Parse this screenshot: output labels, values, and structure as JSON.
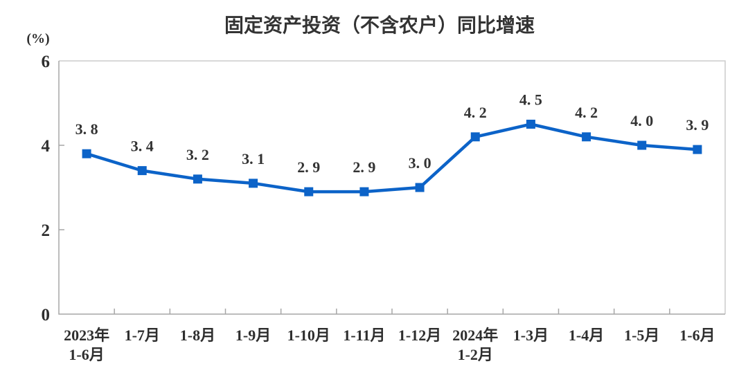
{
  "chart_data": {
    "type": "line",
    "title": "固定资产投资（不含农户）同比增速",
    "ylabel": "(%)",
    "xlabel": "",
    "grid": "off",
    "legend": "none",
    "categories": [
      {
        "line1": "2023年",
        "line2": "1-6月"
      },
      {
        "line1": "1-7月",
        "line2": ""
      },
      {
        "line1": "1-8月",
        "line2": ""
      },
      {
        "line1": "1-9月",
        "line2": ""
      },
      {
        "line1": "1-10月",
        "line2": ""
      },
      {
        "line1": "1-11月",
        "line2": ""
      },
      {
        "line1": "1-12月",
        "line2": ""
      },
      {
        "line1": "2024年",
        "line2": "1-2月"
      },
      {
        "line1": "1-3月",
        "line2": ""
      },
      {
        "line1": "1-4月",
        "line2": ""
      },
      {
        "line1": "1-5月",
        "line2": ""
      },
      {
        "line1": "1-6月",
        "line2": ""
      }
    ],
    "values": [
      3.8,
      3.4,
      3.2,
      3.1,
      2.9,
      2.9,
      3.0,
      4.2,
      4.5,
      4.2,
      4.0,
      3.9
    ],
    "point_labels": [
      "3. 8",
      "3. 4",
      "3. 2",
      "3. 1",
      "2. 9",
      "2. 9",
      "3. 0",
      "4. 2",
      "4. 5",
      "4. 2",
      "4. 0",
      "3. 9"
    ],
    "y_axis": {
      "min": 0,
      "max": 6,
      "ticks": [
        0,
        2,
        4,
        6
      ]
    },
    "colors": {
      "line": "#0C63C8",
      "marker": "#0C63C8",
      "data_label": "#333333",
      "tick_text": "#2E2E2E",
      "title": "#333333",
      "axis": "#A6A6A6",
      "border": "#CCCCCC",
      "background": "#FFFFFF"
    }
  }
}
